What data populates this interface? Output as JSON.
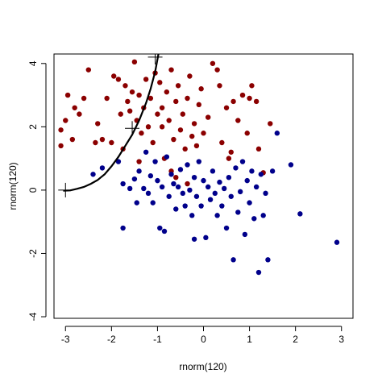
{
  "chart_data": {
    "type": "scatter",
    "title": "",
    "xlabel": "rnorm(120)",
    "ylabel": "rnorm(120)",
    "xlim": [
      -3.25,
      3.25
    ],
    "ylim": [
      -4.05,
      4.3
    ],
    "xticks": [
      -3,
      -2,
      -1,
      0,
      1,
      2,
      3
    ],
    "yticks": [
      -4,
      -2,
      0,
      2,
      4
    ],
    "xtick_labels": [
      "-3",
      "-2",
      "-1",
      "0",
      "1",
      "2",
      "3"
    ],
    "ytick_labels": [
      "-4",
      "-2",
      "0",
      "2",
      "4"
    ],
    "grid": false,
    "legend": "none",
    "series": [
      {
        "color": "#8b0000",
        "points": [
          [
            -3.1,
            1.4
          ],
          [
            -3.0,
            2.2
          ],
          [
            -2.95,
            3.0
          ],
          [
            -3.1,
            1.9
          ],
          [
            -2.85,
            1.6
          ],
          [
            -2.7,
            2.4
          ],
          [
            -2.6,
            2.9
          ],
          [
            -2.5,
            3.8
          ],
          [
            -2.8,
            2.6
          ],
          [
            -2.35,
            1.5
          ],
          [
            -2.3,
            2.1
          ],
          [
            -2.1,
            2.9
          ],
          [
            -2.0,
            1.5
          ],
          [
            -1.95,
            3.6
          ],
          [
            -1.85,
            3.5
          ],
          [
            -1.8,
            2.4
          ],
          [
            -1.75,
            1.3
          ],
          [
            -1.7,
            3.3
          ],
          [
            -1.65,
            2.8
          ],
          [
            -1.6,
            2.5
          ],
          [
            -1.55,
            3.1
          ],
          [
            -1.5,
            4.05
          ],
          [
            -1.45,
            2.2
          ],
          [
            -1.4,
            3.0
          ],
          [
            -1.35,
            1.8
          ],
          [
            -1.3,
            2.6
          ],
          [
            -1.25,
            3.5
          ],
          [
            -1.2,
            2.0
          ],
          [
            -1.15,
            2.9
          ],
          [
            -1.1,
            1.5
          ],
          [
            -1.05,
            3.7
          ],
          [
            -1.0,
            2.4
          ],
          [
            -0.95,
            3.4
          ],
          [
            -0.9,
            2.6
          ],
          [
            -0.85,
            1.0
          ],
          [
            -0.8,
            3.1
          ],
          [
            -0.75,
            2.2
          ],
          [
            -0.7,
            3.8
          ],
          [
            -0.65,
            1.6
          ],
          [
            -0.6,
            2.8
          ],
          [
            -0.55,
            3.3
          ],
          [
            -0.5,
            1.9
          ],
          [
            -0.45,
            2.4
          ],
          [
            -0.4,
            1.3
          ],
          [
            -0.35,
            2.9
          ],
          [
            -0.3,
            3.6
          ],
          [
            -0.25,
            1.7
          ],
          [
            -0.2,
            2.1
          ],
          [
            -0.15,
            1.4
          ],
          [
            -0.1,
            2.7
          ],
          [
            -0.05,
            3.2
          ],
          [
            0.0,
            1.8
          ],
          [
            0.1,
            2.3
          ],
          [
            0.2,
            4.0
          ],
          [
            0.3,
            3.8
          ],
          [
            0.35,
            3.3
          ],
          [
            0.4,
            1.5
          ],
          [
            0.5,
            2.6
          ],
          [
            0.6,
            1.2
          ],
          [
            0.65,
            2.8
          ],
          [
            0.75,
            2.2
          ],
          [
            0.85,
            3.0
          ],
          [
            0.95,
            1.8
          ],
          [
            1.0,
            2.9
          ],
          [
            1.05,
            3.3
          ],
          [
            1.15,
            2.8
          ],
          [
            1.2,
            1.3
          ],
          [
            1.3,
            0.55
          ],
          [
            1.45,
            2.1
          ],
          [
            -0.7,
            0.6
          ],
          [
            -1.4,
            0.9
          ],
          [
            -0.35,
            0.2
          ],
          [
            -0.9,
            2.0
          ],
          [
            0.55,
            1.0
          ],
          [
            -2.2,
            1.6
          ],
          [
            -0.6,
            0.4
          ]
        ]
      },
      {
        "color": "#00008b",
        "points": [
          [
            -2.4,
            0.5
          ],
          [
            -2.2,
            0.7
          ],
          [
            -1.85,
            0.9
          ],
          [
            -1.75,
            0.2
          ],
          [
            -1.6,
            0.05
          ],
          [
            -1.5,
            0.35
          ],
          [
            -1.45,
            -0.4
          ],
          [
            -1.4,
            0.6
          ],
          [
            -1.3,
            0.05
          ],
          [
            -1.25,
            1.2
          ],
          [
            -1.2,
            -0.1
          ],
          [
            -1.15,
            0.45
          ],
          [
            -1.1,
            -0.4
          ],
          [
            -1.05,
            0.9
          ],
          [
            -1.0,
            0.3
          ],
          [
            -0.95,
            -1.2
          ],
          [
            -0.9,
            0.1
          ],
          [
            -0.85,
            -1.3
          ],
          [
            -0.8,
            1.05
          ],
          [
            -0.75,
            -0.2
          ],
          [
            -0.7,
            0.5
          ],
          [
            -0.65,
            0.2
          ],
          [
            -0.6,
            -0.6
          ],
          [
            -0.55,
            0.1
          ],
          [
            -0.5,
            0.65
          ],
          [
            -0.45,
            -0.1
          ],
          [
            -0.4,
            -0.5
          ],
          [
            -0.35,
            0.8
          ],
          [
            -0.3,
            0.0
          ],
          [
            -0.25,
            -0.8
          ],
          [
            -0.2,
            0.4
          ],
          [
            -0.15,
            -0.2
          ],
          [
            -0.1,
            0.9
          ],
          [
            -0.05,
            -0.5
          ],
          [
            0.0,
            0.3
          ],
          [
            0.05,
            -1.5
          ],
          [
            0.1,
            0.1
          ],
          [
            0.15,
            -0.3
          ],
          [
            0.2,
            0.6
          ],
          [
            0.25,
            -0.1
          ],
          [
            0.3,
            -0.8
          ],
          [
            0.35,
            0.25
          ],
          [
            0.4,
            -0.5
          ],
          [
            0.45,
            0.05
          ],
          [
            0.5,
            -1.2
          ],
          [
            0.55,
            0.4
          ],
          [
            0.6,
            -0.2
          ],
          [
            0.65,
            -2.2
          ],
          [
            0.7,
            0.7
          ],
          [
            0.75,
            -0.7
          ],
          [
            0.8,
            -0.05
          ],
          [
            0.85,
            0.9
          ],
          [
            0.9,
            -1.4
          ],
          [
            0.95,
            0.3
          ],
          [
            1.0,
            -0.4
          ],
          [
            1.05,
            0.6
          ],
          [
            1.1,
            -0.9
          ],
          [
            1.15,
            0.1
          ],
          [
            1.2,
            -2.6
          ],
          [
            1.25,
            0.5
          ],
          [
            1.3,
            -0.8
          ],
          [
            1.35,
            -0.1
          ],
          [
            1.4,
            -2.2
          ],
          [
            1.5,
            0.6
          ],
          [
            1.6,
            1.8
          ],
          [
            1.9,
            0.8
          ],
          [
            2.1,
            -0.75
          ],
          [
            2.9,
            -1.65
          ],
          [
            -0.2,
            -1.55
          ],
          [
            -1.75,
            -1.2
          ]
        ]
      }
    ],
    "curve": {
      "color": "#000000",
      "points": [
        [
          -3.05,
          -0.02
        ],
        [
          -2.9,
          -0.01
        ],
        [
          -2.75,
          0.04
        ],
        [
          -2.6,
          0.1
        ],
        [
          -2.45,
          0.2
        ],
        [
          -2.3,
          0.32
        ],
        [
          -2.15,
          0.5
        ],
        [
          -2.0,
          0.75
        ],
        [
          -1.85,
          1.05
        ],
        [
          -1.7,
          1.4
        ],
        [
          -1.55,
          1.75
        ],
        [
          -1.4,
          2.2
        ],
        [
          -1.25,
          2.75
        ],
        [
          -1.15,
          3.2
        ],
        [
          -1.05,
          3.75
        ],
        [
          -0.98,
          4.3
        ]
      ],
      "markers": [
        [
          -3.0,
          0.0
        ],
        [
          -1.55,
          1.95
        ],
        [
          -1.05,
          4.2
        ]
      ]
    }
  }
}
